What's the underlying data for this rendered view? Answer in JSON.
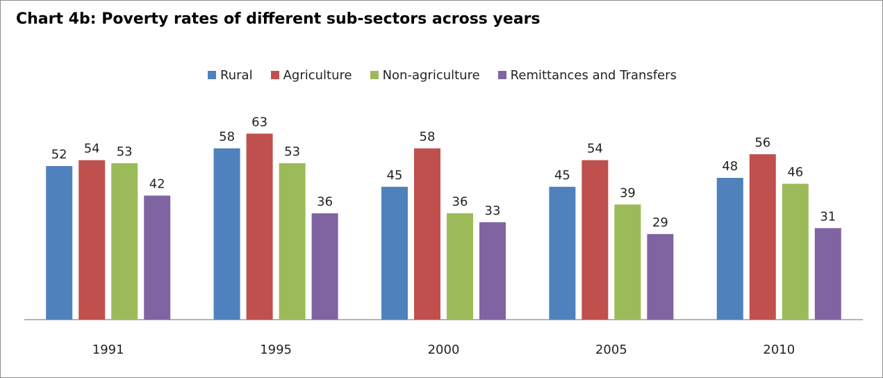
{
  "chart_data": {
    "type": "bar",
    "title": "Chart 4b: Poverty rates of different sub-sectors across years",
    "categories": [
      "1991",
      "1995",
      "2000",
      "2005",
      "2010"
    ],
    "series": [
      {
        "name": "Rural",
        "color": "#4f81bd",
        "values": [
          52,
          58,
          45,
          45,
          48
        ]
      },
      {
        "name": "Agriculture",
        "color": "#c0504d",
        "values": [
          54,
          63,
          58,
          54,
          56
        ]
      },
      {
        "name": "Non-agriculture",
        "color": "#9bbb59",
        "values": [
          53,
          53,
          36,
          39,
          46
        ]
      },
      {
        "name": "Remittances and Transfers",
        "color": "#8064a2",
        "values": [
          42,
          36,
          33,
          29,
          31
        ]
      }
    ],
    "xlabel": "",
    "ylabel": "",
    "ylim": [
      0,
      70
    ],
    "grid": false,
    "legend_position": "top",
    "data_labels": true
  }
}
